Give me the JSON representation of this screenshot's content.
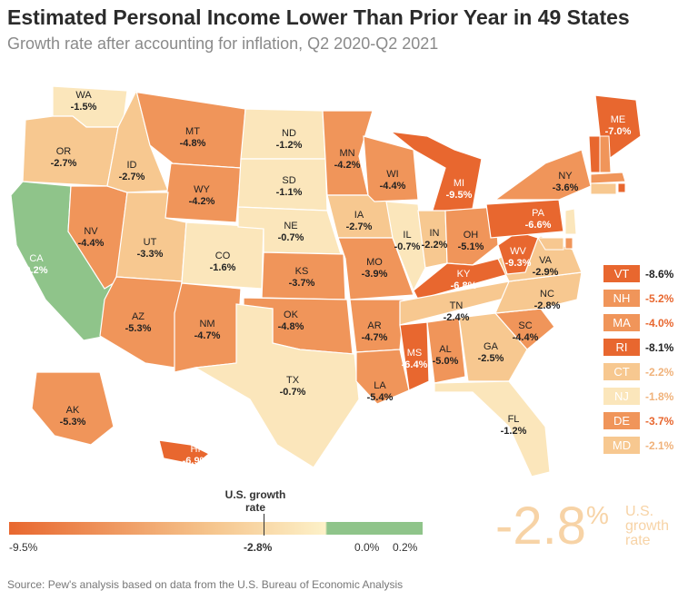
{
  "title": "Estimated Personal Income Lower Than Prior Year in 49 States",
  "subtitle": "Growth rate after accounting for inflation, Q2 2020-Q2 2021",
  "source": "Source: Pew's analysis based on data from the U.S. Bureau of Economic Analysis",
  "us_rate": {
    "value": "-2.8",
    "unit": "%",
    "label_lines": [
      "U.S.",
      "growth",
      "rate"
    ]
  },
  "scale": {
    "title_lines": [
      "U.S. growth",
      "rate"
    ],
    "labels": [
      "-9.5%",
      "-2.8%",
      "0.0%",
      "0.2%"
    ]
  },
  "colors": {
    "dark": "#e8672f",
    "mid": "#f0955a",
    "light": "#f7c890",
    "pale": "#fbe6bb",
    "green": "#8fc48a",
    "border": "#ffffff"
  },
  "states": [
    {
      "abbr": "WA",
      "value": "-1.5"
    },
    {
      "abbr": "OR",
      "value": "-2.7"
    },
    {
      "abbr": "CA",
      "value": "0.2"
    },
    {
      "abbr": "NV",
      "value": "-4.4"
    },
    {
      "abbr": "ID",
      "value": "-2.7"
    },
    {
      "abbr": "MT",
      "value": "-4.8"
    },
    {
      "abbr": "WY",
      "value": "-4.2"
    },
    {
      "abbr": "UT",
      "value": "-3.3"
    },
    {
      "abbr": "AZ",
      "value": "-5.3"
    },
    {
      "abbr": "CO",
      "value": "-1.6"
    },
    {
      "abbr": "NM",
      "value": "-4.7"
    },
    {
      "abbr": "ND",
      "value": "-1.2"
    },
    {
      "abbr": "SD",
      "value": "-1.1"
    },
    {
      "abbr": "NE",
      "value": "-0.7"
    },
    {
      "abbr": "KS",
      "value": "-3.7"
    },
    {
      "abbr": "OK",
      "value": "-4.8"
    },
    {
      "abbr": "TX",
      "value": "-0.7"
    },
    {
      "abbr": "MN",
      "value": "-4.2"
    },
    {
      "abbr": "IA",
      "value": "-2.7"
    },
    {
      "abbr": "MO",
      "value": "-3.9"
    },
    {
      "abbr": "AR",
      "value": "-4.7"
    },
    {
      "abbr": "LA",
      "value": "-5.4"
    },
    {
      "abbr": "WI",
      "value": "-4.4"
    },
    {
      "abbr": "IL",
      "value": "-0.7"
    },
    {
      "abbr": "MI",
      "value": "-9.5"
    },
    {
      "abbr": "IN",
      "value": "-2.2"
    },
    {
      "abbr": "OH",
      "value": "-5.1"
    },
    {
      "abbr": "KY",
      "value": "-6.8"
    },
    {
      "abbr": "TN",
      "value": "-2.4"
    },
    {
      "abbr": "MS",
      "value": "-6.4"
    },
    {
      "abbr": "AL",
      "value": "-5.0"
    },
    {
      "abbr": "GA",
      "value": "-2.5"
    },
    {
      "abbr": "FL",
      "value": "-1.2"
    },
    {
      "abbr": "SC",
      "value": "-4.4"
    },
    {
      "abbr": "NC",
      "value": "-2.8"
    },
    {
      "abbr": "VA",
      "value": "-2.9"
    },
    {
      "abbr": "WV",
      "value": "-9.3"
    },
    {
      "abbr": "PA",
      "value": "-6.6"
    },
    {
      "abbr": "NY",
      "value": "-3.6"
    },
    {
      "abbr": "ME",
      "value": "-7.0"
    },
    {
      "abbr": "AK",
      "value": "-5.3"
    },
    {
      "abbr": "HI",
      "value": "-6.9"
    }
  ],
  "legend_states": [
    {
      "abbr": "VT",
      "value": "-8.6"
    },
    {
      "abbr": "NH",
      "value": "-5.2"
    },
    {
      "abbr": "MA",
      "value": "-4.0"
    },
    {
      "abbr": "RI",
      "value": "-8.1"
    },
    {
      "abbr": "CT",
      "value": "-2.2"
    },
    {
      "abbr": "NJ",
      "value": "-1.8"
    },
    {
      "abbr": "DE",
      "value": "-3.7"
    },
    {
      "abbr": "MD",
      "value": "-2.1"
    }
  ]
}
